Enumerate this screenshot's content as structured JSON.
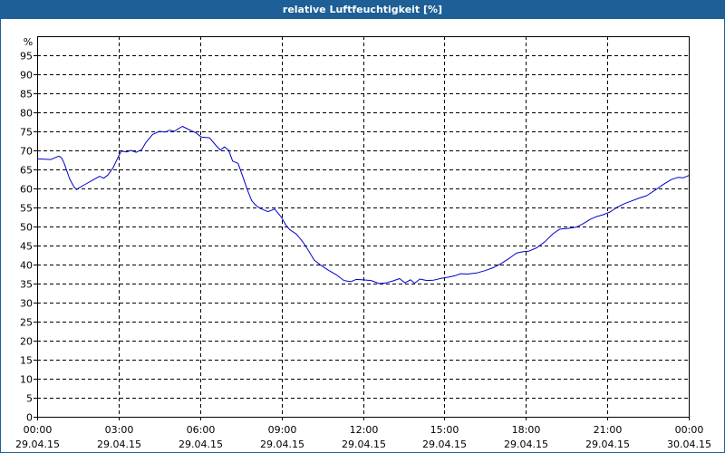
{
  "window": {
    "title": "relative Luftfeuchtigkeit [%]"
  },
  "colors": {
    "title_bar": "#1d5f96",
    "line": "#0000cc",
    "grid": "#000000"
  },
  "chart_data": {
    "type": "line",
    "title": "relative Luftfeuchtigkeit [%]",
    "ylabel": "%",
    "xlabel": "",
    "ylim": [
      0,
      100
    ],
    "xlim_hours": [
      0,
      24
    ],
    "grid": true,
    "y_ticks": [
      0,
      5,
      10,
      15,
      20,
      25,
      30,
      35,
      40,
      45,
      50,
      55,
      60,
      65,
      70,
      75,
      80,
      85,
      90,
      95
    ],
    "x_ticks": [
      {
        "hour": 0,
        "time": "00:00",
        "date": "29.04.15"
      },
      {
        "hour": 3,
        "time": "03:00",
        "date": "29.04.15"
      },
      {
        "hour": 6,
        "time": "06:00",
        "date": "29.04.15"
      },
      {
        "hour": 9,
        "time": "09:00",
        "date": "29.04.15"
      },
      {
        "hour": 12,
        "time": "12:00",
        "date": "29.04.15"
      },
      {
        "hour": 15,
        "time": "15:00",
        "date": "29.04.15"
      },
      {
        "hour": 18,
        "time": "18:00",
        "date": "29.04.15"
      },
      {
        "hour": 21,
        "time": "21:00",
        "date": "29.04.15"
      },
      {
        "hour": 24,
        "time": "00:00",
        "date": "30.04.15"
      }
    ],
    "series": [
      {
        "x": [
          0,
          0.3,
          0.5,
          0.8,
          0.9,
          1.0,
          1.2,
          1.35,
          1.45,
          1.55,
          1.8,
          2.0,
          2.3,
          2.45,
          2.6,
          2.8,
          3.0,
          3.1,
          3.3,
          3.45,
          3.65,
          3.85,
          4.0,
          4.25,
          4.5,
          4.7,
          4.9,
          5.05,
          5.2,
          5.35,
          5.55,
          5.85,
          6.05,
          6.35,
          6.6,
          6.75,
          6.9,
          7.05,
          7.2,
          7.4,
          7.55,
          7.75,
          7.9,
          8.05,
          8.2,
          8.5,
          8.75,
          9.0,
          9.15,
          9.3,
          9.55,
          9.8,
          10.0,
          10.2,
          10.45,
          10.75,
          11.0,
          11.3,
          11.55,
          11.75,
          11.95,
          12.3,
          12.6,
          12.85,
          13.1,
          13.35,
          13.55,
          13.75,
          13.9,
          14.1,
          14.35,
          14.6,
          14.9,
          15.15,
          15.4,
          15.6,
          15.85,
          16.2,
          16.5,
          16.8,
          17.1,
          17.4,
          17.65,
          17.9,
          18.1,
          18.4,
          18.7,
          19.0,
          19.25,
          19.55,
          19.85,
          20.1,
          20.35,
          20.6,
          20.85,
          21.1,
          21.35,
          21.6,
          21.85,
          22.15,
          22.45,
          22.75,
          23.05,
          23.35,
          23.6,
          23.8,
          24.0
        ],
        "values": [
          67.8,
          67.7,
          67.6,
          68.5,
          68.0,
          66.5,
          62.5,
          60.5,
          59.7,
          60.2,
          61.2,
          62.0,
          63.2,
          62.7,
          63.5,
          65.5,
          68.5,
          69.8,
          69.6,
          70.0,
          69.5,
          70.2,
          72.0,
          74.2,
          75.0,
          74.8,
          75.3,
          75.0,
          75.7,
          76.3,
          75.6,
          74.6,
          73.5,
          73.3,
          71.2,
          70.1,
          70.9,
          70.1,
          67.2,
          66.6,
          63.6,
          59.5,
          56.8,
          55.6,
          54.8,
          53.9,
          54.6,
          52.4,
          50.5,
          49.2,
          48.0,
          45.8,
          43.6,
          41.2,
          39.8,
          38.4,
          37.4,
          35.8,
          35.5,
          36.1,
          36.0,
          35.8,
          35.0,
          35.2,
          35.7,
          36.3,
          35.2,
          36.0,
          35.1,
          36.2,
          35.8,
          35.9,
          36.4,
          36.7,
          37.1,
          37.6,
          37.5,
          37.8,
          38.4,
          39.2,
          40.3,
          41.7,
          43.0,
          43.4,
          43.5,
          44.4,
          46.0,
          48.1,
          49.3,
          49.5,
          49.8,
          50.7,
          51.8,
          52.6,
          53.1,
          53.8,
          55.0,
          55.9,
          56.6,
          57.4,
          58.1,
          59.5,
          61.0,
          62.3,
          62.9,
          62.8,
          63.4
        ]
      }
    ]
  }
}
